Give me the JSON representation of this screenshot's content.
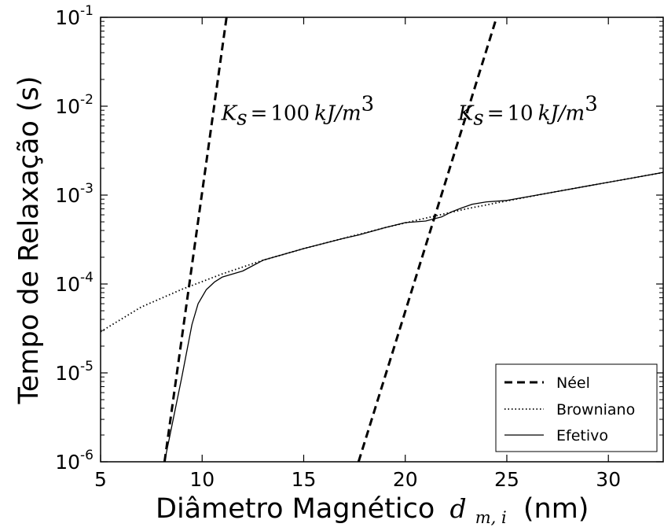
{
  "chart_data": {
    "type": "line",
    "xlabel": "Diâmetro Magnético",
    "xlabel_math": "d",
    "xlabel_math_sub": "m, i",
    "xlabel_unit": "(nm)",
    "ylabel": "Tempo de Relaxação (s)",
    "xlim": [
      5,
      32.7
    ],
    "ylim": [
      1e-06,
      0.1
    ],
    "yscale": "log",
    "grid": false,
    "legend_position": "lower-right",
    "x_ticks": [
      "5",
      "10",
      "15",
      "20",
      "25",
      "30"
    ],
    "y_ticks": [
      {
        "base": "10",
        "exp": "-6"
      },
      {
        "base": "10",
        "exp": "-5"
      },
      {
        "base": "10",
        "exp": "-4"
      },
      {
        "base": "10",
        "exp": "-3"
      },
      {
        "base": "10",
        "exp": "-2"
      },
      {
        "base": "10",
        "exp": "-1"
      }
    ],
    "series": [
      {
        "name": "Néel",
        "style": "dashed",
        "segments": [
          {
            "x": [
              8.15,
              11.2
            ],
            "y": [
              1e-06,
              0.1
            ]
          },
          {
            "x": [
              17.7,
              24.5
            ],
            "y": [
              1e-06,
              0.1
            ]
          }
        ]
      },
      {
        "name": "Browniano",
        "style": "dotted",
        "x": [
          5,
          7,
          9,
          11,
          13,
          15,
          17,
          19,
          21,
          23,
          25,
          27,
          29,
          31,
          32.7
        ],
        "y": [
          2.9e-05,
          5.5e-05,
          8.7e-05,
          0.00013,
          0.000185,
          0.00025,
          0.000328,
          0.00043,
          0.00055,
          0.0007,
          0.00086,
          0.00105,
          0.00127,
          0.00153,
          0.0018
        ]
      },
      {
        "name": "Efetivo",
        "style": "solid",
        "x": [
          8.15,
          9.0,
          9.5,
          9.8,
          10.2,
          10.6,
          11.0,
          12,
          13,
          15,
          17,
          17.7,
          19,
          20,
          21,
          21.8,
          22.3,
          22.8,
          23.3,
          24,
          25,
          27,
          29,
          31,
          32.7
        ],
        "y": [
          1e-06,
          9e-06,
          3.5e-05,
          6e-05,
          8.6e-05,
          0.000105,
          0.00012,
          0.00014,
          0.000185,
          0.00025,
          0.000328,
          0.000355,
          0.00043,
          0.00049,
          0.00051,
          0.00057,
          0.00065,
          0.00072,
          0.00079,
          0.00084,
          0.00087,
          0.00105,
          0.00127,
          0.00153,
          0.0018
        ]
      }
    ],
    "annotations": [
      {
        "symbol": "K",
        "sub": "s",
        "value": "100",
        "unit": "kJ/m",
        "exp": "3",
        "x": 10.95,
        "y": 0.0105
      },
      {
        "symbol": "K",
        "sub": "s",
        "value": "10",
        "unit": "kJ/m",
        "exp": "3",
        "x": 22.6,
        "y": 0.0105
      }
    ]
  }
}
